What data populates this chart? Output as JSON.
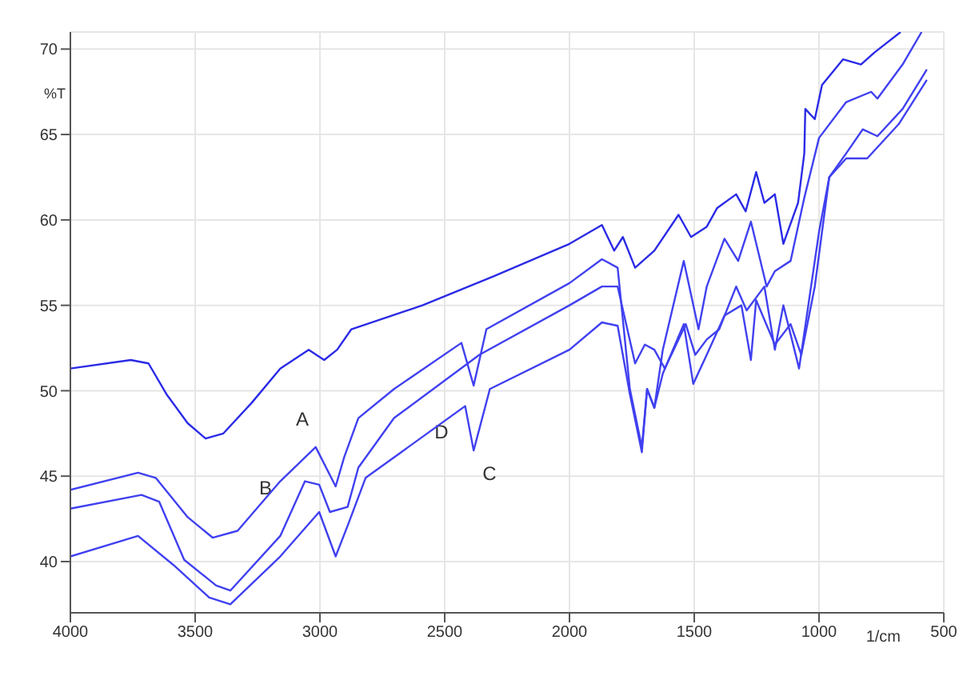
{
  "chart_data": {
    "type": "line",
    "xlabel": "1/cm",
    "ylabel": "%T",
    "xlim": [
      4000,
      500
    ],
    "xticks": [
      4000,
      3500,
      3000,
      2500,
      2000,
      1500,
      1000,
      500
    ],
    "ylim": [
      37,
      71
    ],
    "yticks": [
      40,
      45,
      50,
      55,
      60,
      65,
      70
    ],
    "grid": true,
    "legend": false,
    "marker": "none",
    "line_style": "solid",
    "series": [
      {
        "color": "#2a2ae6",
        "x": [
          4000,
          3758,
          3687,
          3615,
          3530,
          3458,
          3387,
          3273,
          3159,
          3045,
          2983,
          2931,
          2874,
          2589,
          2304,
          2000,
          1870,
          1821,
          1786,
          1737,
          1660,
          1563,
          1513,
          1450,
          1408,
          1332,
          1294,
          1252,
          1219,
          1177,
          1143,
          1084,
          1059,
          1055,
          1017,
          988,
          904,
          832,
          778,
          673
        ],
        "values": [
          51.3,
          51.8,
          51.6,
          49.8,
          48.1,
          47.2,
          47.5,
          49.3,
          51.3,
          52.4,
          51.8,
          52.4,
          53.6,
          55.0,
          56.7,
          58.6,
          59.7,
          58.2,
          59.0,
          57.2,
          58.2,
          60.3,
          59.0,
          59.6,
          60.7,
          61.5,
          60.5,
          62.8,
          61.0,
          61.5,
          58.6,
          61.0,
          63.9,
          66.5,
          65.9,
          67.9,
          69.4,
          69.1,
          69.8,
          71.0
        ]
      },
      {
        "color": "#4040f0",
        "x": [
          4000,
          3729,
          3658,
          3530,
          3430,
          3330,
          3159,
          3017,
          2937,
          2903,
          2846,
          2703,
          2433,
          2384,
          2333,
          2000,
          1870,
          1807,
          1758,
          1710,
          1689,
          1660,
          1626,
          1542,
          1483,
          1450,
          1379,
          1324,
          1273,
          1210,
          1177,
          1114,
          1059,
          1000,
          891,
          791,
          766,
          665,
          589
        ],
        "values": [
          44.2,
          45.2,
          44.9,
          42.6,
          41.4,
          41.8,
          44.7,
          46.7,
          44.4,
          46.1,
          48.4,
          50.1,
          52.8,
          50.3,
          53.6,
          56.3,
          57.7,
          57.2,
          50.1,
          46.7,
          50.1,
          49.0,
          52.4,
          57.6,
          53.6,
          56.1,
          58.9,
          57.6,
          59.9,
          56.1,
          57.0,
          57.6,
          61.3,
          64.8,
          66.9,
          67.5,
          67.1,
          69.1,
          71.0
        ]
      },
      {
        "color": "#4040f0",
        "x": [
          4000,
          3715,
          3644,
          3544,
          3416,
          3359,
          3159,
          3060,
          3003,
          2960,
          2889,
          2846,
          2703,
          2361,
          2000,
          1870,
          1807,
          1737,
          1698,
          1660,
          1618,
          1534,
          1496,
          1450,
          1400,
          1332,
          1290,
          1219,
          1177,
          1143,
          1080,
          1046,
          1000,
          959,
          891,
          825,
          766,
          665,
          568
        ],
        "values": [
          43.1,
          43.9,
          43.5,
          40.1,
          38.6,
          38.3,
          41.5,
          44.7,
          44.5,
          42.9,
          43.2,
          45.5,
          48.4,
          52.1,
          55.0,
          56.1,
          56.1,
          51.6,
          52.7,
          52.4,
          51.3,
          53.9,
          52.1,
          53.0,
          53.6,
          56.1,
          54.7,
          56.1,
          52.4,
          55.0,
          51.3,
          54.7,
          59.3,
          62.5,
          63.9,
          65.3,
          64.9,
          66.5,
          68.8
        ]
      },
      {
        "color": "#4040f0",
        "x": [
          4000,
          3729,
          3587,
          3444,
          3359,
          3159,
          3003,
          2937,
          2889,
          2817,
          2418,
          2384,
          2319,
          2000,
          1870,
          1807,
          1758,
          1710,
          1689,
          1660,
          1626,
          1542,
          1504,
          1450,
          1379,
          1311,
          1273,
          1252,
          1177,
          1114,
          1071,
          1017,
          959,
          891,
          807,
          681,
          568
        ],
        "values": [
          40.3,
          41.5,
          39.8,
          37.9,
          37.5,
          40.3,
          42.9,
          40.3,
          42.1,
          44.9,
          49.1,
          46.5,
          50.1,
          52.4,
          54.0,
          53.8,
          49.8,
          46.4,
          50.1,
          49.0,
          51.0,
          53.9,
          50.4,
          52.1,
          54.4,
          55.0,
          51.8,
          55.3,
          52.7,
          53.9,
          52.1,
          56.1,
          62.5,
          63.6,
          63.6,
          65.6,
          68.2
        ]
      }
    ],
    "annotations": [
      "A",
      "B",
      "D",
      "C"
    ]
  }
}
